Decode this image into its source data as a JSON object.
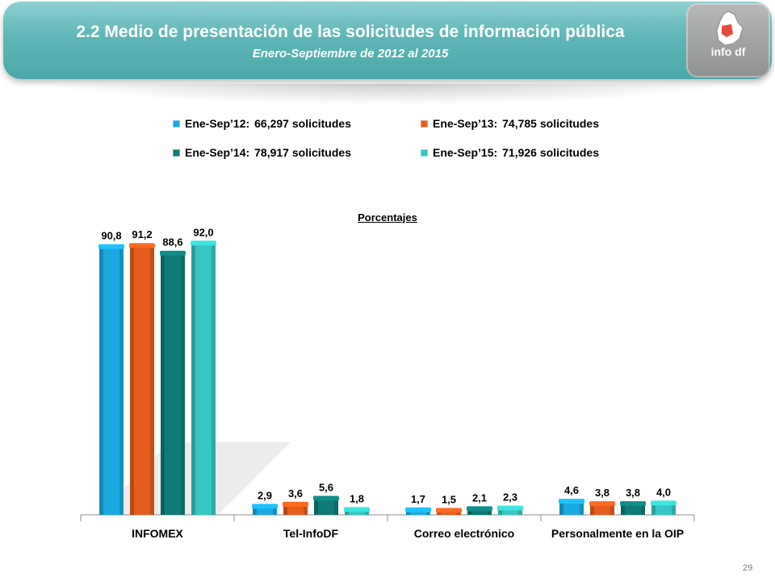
{
  "header": {
    "title": "2.2 Medio de presentación de las solicitudes de información pública",
    "subtitle": "Enero-Septiembre de 2012 al 2015",
    "logo_text": "info df"
  },
  "legend": [
    {
      "label": "Ene-Sep’12:",
      "value": "66,297 solicitudes",
      "color": "#1aa9e0"
    },
    {
      "label": "Ene-Sep’13:",
      "value": "74,785 solicitudes",
      "color": "#e65c1c"
    },
    {
      "label": "Ene-Sep’14:",
      "value": "78,917 solicitudes",
      "color": "#0f7b78"
    },
    {
      "label": "Ene-Sep’15:",
      "value": "71,926 solicitudes",
      "color": "#37c6c3"
    }
  ],
  "chart_data": {
    "type": "bar",
    "title": "",
    "subtitle": "Porcentajes",
    "categories": [
      "INFOMEX",
      "Tel-InfoDF",
      "Correo electrónico",
      "Personalmente en la OIP"
    ],
    "series": [
      {
        "name": "Ene-Sep’12",
        "values": [
          90.8,
          2.9,
          1.7,
          4.6
        ],
        "labels": [
          "90,8",
          "2,9",
          "1,7",
          "4,6"
        ],
        "color": "#1aa9e0"
      },
      {
        "name": "Ene-Sep’13",
        "values": [
          91.2,
          3.6,
          1.5,
          3.8
        ],
        "labels": [
          "91,2",
          "3,6",
          "1,5",
          "3,8"
        ],
        "color": "#e65c1c"
      },
      {
        "name": "Ene-Sep’14",
        "values": [
          88.6,
          5.6,
          2.1,
          3.8
        ],
        "labels": [
          "88,6",
          "5,6",
          "2,1",
          "3,8"
        ],
        "color": "#0f7b78"
      },
      {
        "name": "Ene-Sep’15",
        "values": [
          92.0,
          1.8,
          2.3,
          4.0
        ],
        "labels": [
          "92,0",
          "1,8",
          "2,3",
          "4,0"
        ],
        "color": "#37c6c3"
      }
    ],
    "ylim": [
      0,
      100
    ],
    "grid": false,
    "legend_position": "top"
  },
  "page_number": "29"
}
